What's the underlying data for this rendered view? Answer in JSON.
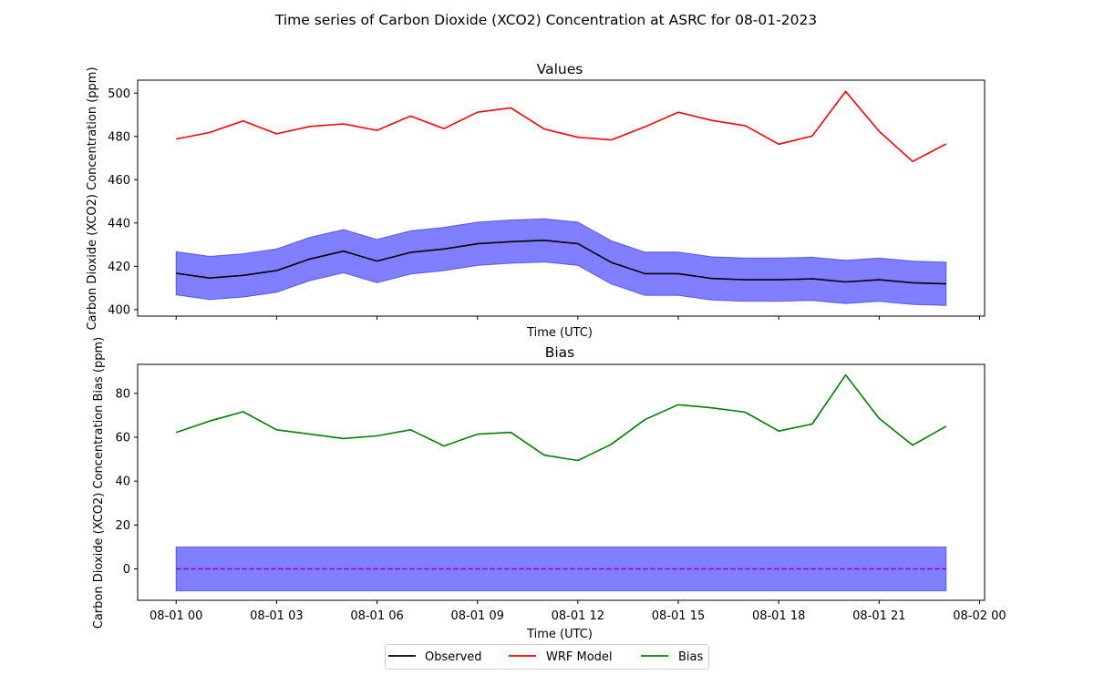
{
  "figure": {
    "title": "Time series of Carbon Dioxide (XCO2) Concentration at ASRC for 08-01-2023"
  },
  "legend": {
    "placement": "bottom-center",
    "items": [
      {
        "label": "Observed",
        "color": "#000000"
      },
      {
        "label": "WRF Model",
        "color": "#ff0000"
      },
      {
        "label": "Bias",
        "color": "#008000"
      }
    ]
  },
  "chart_data": [
    {
      "type": "line",
      "title": "Values",
      "xlabel": "Time (UTC)",
      "ylabel": "Carbon Dioxide (XCO2) Concentration (ppm)",
      "x_tick_labels": [],
      "y_ticks": [
        400,
        420,
        440,
        460,
        480,
        500
      ],
      "ylim": [
        397,
        506
      ],
      "grid": false,
      "x_hours": [
        0,
        1,
        2,
        3,
        4,
        5,
        6,
        7,
        8,
        9,
        10,
        11,
        12,
        13,
        14,
        15,
        16,
        17,
        18,
        19,
        20,
        21,
        22,
        23
      ],
      "series": [
        {
          "name": "Observed",
          "color": "#000000",
          "values": [
            416.8,
            414.6,
            415.8,
            418.0,
            423.4,
            427.0,
            422.4,
            426.4,
            428.0,
            430.4,
            431.4,
            432.0,
            430.4,
            421.8,
            416.6,
            416.6,
            414.4,
            413.8,
            413.8,
            414.2,
            412.8,
            413.8,
            412.4,
            411.9
          ]
        },
        {
          "name": "WRF Model",
          "color": "#ff0000",
          "values": [
            478.8,
            481.8,
            487.2,
            481.2,
            484.6,
            485.8,
            482.8,
            489.4,
            483.6,
            491.2,
            493.2,
            483.4,
            479.6,
            478.4,
            484.4,
            491.2,
            487.4,
            485.0,
            476.4,
            480.2,
            500.8,
            482.4,
            468.4,
            476.6
          ]
        }
      ],
      "band": {
        "color": "#0000ff",
        "opacity": 0.5,
        "halfwidth": 10
      }
    },
    {
      "type": "line",
      "title": "Bias",
      "xlabel": "Time (UTC)",
      "ylabel": "Carbon Dioxide (XCO2) Concentration Bias (ppm)",
      "x_tick_labels": [
        "08-01 00",
        "08-01 03",
        "08-01 06",
        "08-01 09",
        "08-01 12",
        "08-01 15",
        "08-01 18",
        "08-01 21",
        "08-02 00"
      ],
      "y_ticks": [
        0,
        20,
        40,
        60,
        80
      ],
      "ylim": [
        -14.3,
        93.2
      ],
      "grid": false,
      "x_hours": [
        0,
        1,
        2,
        3,
        4,
        5,
        6,
        7,
        8,
        9,
        10,
        11,
        12,
        13,
        14,
        15,
        16,
        17,
        18,
        19,
        20,
        21,
        22,
        23
      ],
      "series": [
        {
          "name": "Bias",
          "color": "#008000",
          "values": [
            62.2,
            67.4,
            71.6,
            63.4,
            61.4,
            59.4,
            60.6,
            63.4,
            56.0,
            61.4,
            62.2,
            51.8,
            49.4,
            56.8,
            68.0,
            74.8,
            73.4,
            71.4,
            62.8,
            66.0,
            88.4,
            68.6,
            56.4,
            65.0
          ]
        }
      ],
      "band": {
        "color": "#0000ff",
        "opacity": 0.5,
        "lower": -10,
        "upper": 10
      },
      "reference_line": {
        "value": 0,
        "color": "#9400d3",
        "style": "dashed"
      }
    }
  ]
}
